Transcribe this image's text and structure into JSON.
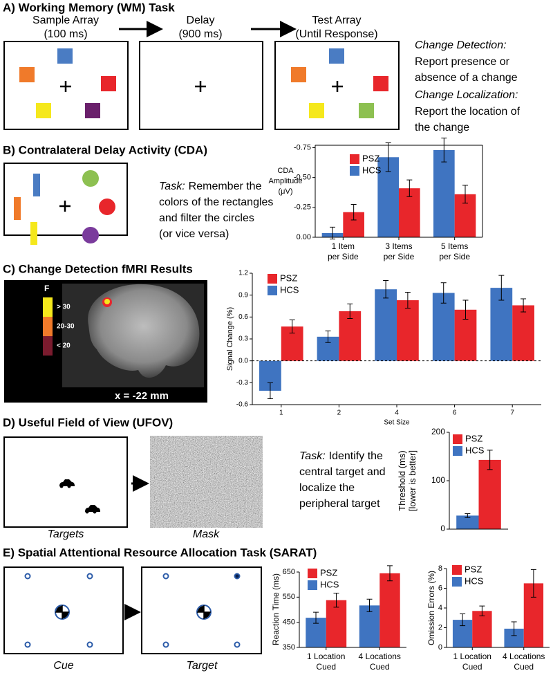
{
  "panel_a": {
    "title": "A) Working Memory (WM) Task",
    "frames": [
      {
        "lines": [
          "Sample Array",
          "(100 ms)"
        ]
      },
      {
        "lines": [
          "Delay",
          "(900 ms)"
        ]
      },
      {
        "lines": [
          "Test Array",
          "(Until Response)"
        ]
      }
    ],
    "notes": [
      {
        "heading": "Change Detection:",
        "lines": [
          "Report presence or",
          "absence of a change"
        ]
      },
      {
        "heading": "Change Localization:",
        "lines": [
          "Report the location of",
          "the change"
        ]
      }
    ]
  },
  "panel_b": {
    "title": "B) Contralateral Delay Activity (CDA)",
    "task_label": "Task:",
    "task_lines": [
      "Remember the",
      "colors of the rectangles",
      "and filter the circles",
      "(or vice versa)"
    ]
  },
  "panel_c": {
    "title": "C) Change Detection fMRI Results",
    "colorbar_title": "F",
    "colorbar_labels": [
      "> 30",
      "20-30",
      "< 20"
    ],
    "slice_label": "x = -22 mm"
  },
  "panel_d": {
    "title": "D) Useful Field of View (UFOV)",
    "captions": [
      "Targets",
      "Mask"
    ],
    "task_label": "Task:",
    "task_lines": [
      "Identify the",
      "central target and",
      "localize the",
      "peripheral target"
    ]
  },
  "panel_e": {
    "title": "E) Spatial Attentional Resource Allocation Task (SARAT)",
    "captions": [
      "Cue",
      "Target"
    ]
  },
  "chart_data": [
    {
      "type": "bar",
      "ylabel": [
        "CDA",
        "Amplitude",
        "(μV)"
      ],
      "categories": [
        [
          "1 Item",
          "per Side"
        ],
        [
          "3 Items",
          "per Side"
        ],
        [
          "5 Items",
          "per Side"
        ]
      ],
      "series": [
        {
          "name": "HCS",
          "color": "#3f74c1",
          "values": [
            -0.035,
            -0.67,
            -0.73
          ],
          "errors": [
            0.05,
            0.12,
            0.1
          ]
        },
        {
          "name": "PSZ",
          "color": "#e8262b",
          "values": [
            -0.21,
            -0.41,
            -0.36
          ],
          "errors": [
            0.065,
            0.07,
            0.075
          ]
        }
      ],
      "ylim": [
        0,
        -0.77
      ],
      "yticks": [
        {
          "value": 0,
          "label": "0.00"
        },
        {
          "value": -0.25,
          "label": "-0.25"
        },
        {
          "value": -0.5,
          "label": "-0.50"
        },
        {
          "value": -0.75,
          "label": "-0.75"
        }
      ],
      "frame": true,
      "legend": "top-left"
    },
    {
      "type": "bar",
      "ylabel": [
        "Signal Change (%)"
      ],
      "xlabel": "Set Size",
      "categories": [
        "1",
        "2",
        "4",
        "6",
        "7"
      ],
      "series": [
        {
          "name": "HCS",
          "color": "#3f74c1",
          "values": [
            -0.41,
            0.33,
            0.98,
            0.93,
            1.0
          ],
          "errors": [
            0.11,
            0.08,
            0.12,
            0.14,
            0.17
          ]
        },
        {
          "name": "PSZ",
          "color": "#e8262b",
          "values": [
            0.47,
            0.68,
            0.83,
            0.7,
            0.76
          ],
          "errors": [
            0.09,
            0.1,
            0.11,
            0.13,
            0.09
          ]
        }
      ],
      "ylim": [
        -0.6,
        1.2
      ],
      "yticks": [
        -0.6,
        -0.3,
        {
          "value": 0,
          "label": "0.0"
        },
        0.3,
        0.6,
        0.9,
        1.2
      ],
      "zero_line": true,
      "legend": "top-left"
    },
    {
      "type": "bar",
      "ylabel": [
        "Threshold (ms)",
        "[lower is better]"
      ],
      "series": [
        {
          "name": "HCS",
          "color": "#3f74c1",
          "values": [
            28
          ],
          "errors": [
            4
          ]
        },
        {
          "name": "PSZ",
          "color": "#e8262b",
          "values": [
            143
          ],
          "errors": [
            20
          ]
        }
      ],
      "ylim": [
        0,
        200
      ],
      "yticks": [
        0,
        100,
        200
      ],
      "legend": "top-left"
    },
    {
      "type": "bar",
      "ylabel": [
        "Reaction Time (ms)"
      ],
      "categories": [
        [
          "1 Location",
          "Cued"
        ],
        [
          "4 Locations",
          "Cued"
        ]
      ],
      "series": [
        {
          "name": "HCS",
          "color": "#3f74c1",
          "values": [
            468,
            517
          ],
          "errors": [
            22,
            25
          ]
        },
        {
          "name": "PSZ",
          "color": "#e8262b",
          "values": [
            538,
            645
          ],
          "errors": [
            28,
            30
          ]
        }
      ],
      "ylim": [
        350,
        650
      ],
      "yticks": [
        350,
        450,
        550,
        650
      ],
      "legend": "top-left"
    },
    {
      "type": "bar",
      "ylabel": [
        "Omission Errors (%)"
      ],
      "categories": [
        [
          "1 Location",
          "Cued"
        ],
        [
          "4 Locations",
          "Cued"
        ]
      ],
      "series": [
        {
          "name": "HCS",
          "color": "#3f74c1",
          "values": [
            2.8,
            1.9
          ],
          "errors": [
            0.6,
            0.7
          ]
        },
        {
          "name": "PSZ",
          "color": "#e8262b",
          "values": [
            3.7,
            6.5
          ],
          "errors": [
            0.5,
            1.4
          ]
        }
      ],
      "ylim": [
        0,
        8
      ],
      "yticks": [
        0,
        2,
        4,
        6,
        8
      ],
      "legend": "top-left"
    }
  ]
}
